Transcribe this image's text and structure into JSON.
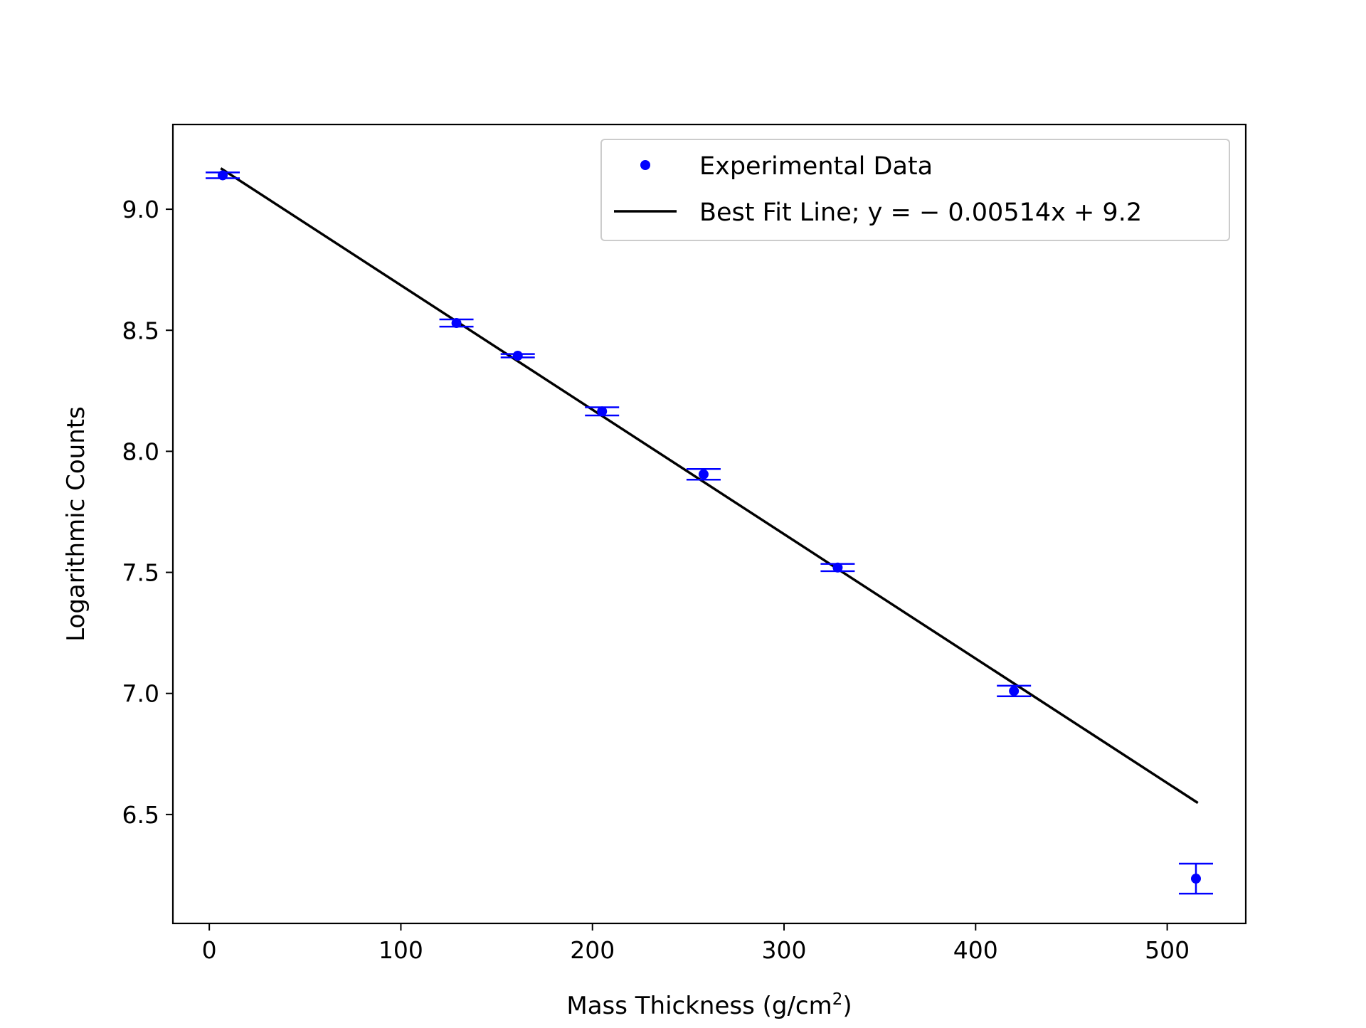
{
  "chart_data": {
    "type": "scatter",
    "xlabel": "Mass Thickness (g/cm",
    "xlabel_superscript": "2",
    "xlabel_suffix": ")",
    "ylabel": "Logarithmic Counts",
    "xlim": [
      -19,
      541
    ],
    "ylim": [
      6.05,
      9.35
    ],
    "xticks": [
      0,
      100,
      200,
      300,
      400,
      500
    ],
    "xtick_labels": [
      "0",
      "100",
      "200",
      "300",
      "400",
      "500"
    ],
    "yticks": [
      6.5,
      7.0,
      7.5,
      8.0,
      8.5,
      9.0
    ],
    "ytick_labels": [
      "6.5",
      "7.0",
      "7.5",
      "8.0",
      "8.5",
      "9.0"
    ],
    "grid": false,
    "legend_position": "top-right",
    "series": [
      {
        "name": "Experimental Data",
        "kind": "points_with_errorbars",
        "color": "#0000ff",
        "points": [
          {
            "x": 7,
            "y": 9.14,
            "err": 0.012
          },
          {
            "x": 129,
            "y": 8.53,
            "err": 0.015
          },
          {
            "x": 161,
            "y": 8.395,
            "err": 0.007
          },
          {
            "x": 205,
            "y": 8.165,
            "err": 0.017
          },
          {
            "x": 258,
            "y": 7.905,
            "err": 0.022
          },
          {
            "x": 328,
            "y": 7.52,
            "err": 0.015
          },
          {
            "x": 420,
            "y": 7.01,
            "err": 0.022
          },
          {
            "x": 515,
            "y": 6.235,
            "err": 0.062
          }
        ]
      },
      {
        "name_prefix": "Best Fit Line; ",
        "name_math": "y = − 0.00514x + 9.2",
        "kind": "line",
        "color": "#000000",
        "slope": -0.00514,
        "intercept": 9.2,
        "x_range": [
          6,
          516
        ]
      }
    ]
  }
}
